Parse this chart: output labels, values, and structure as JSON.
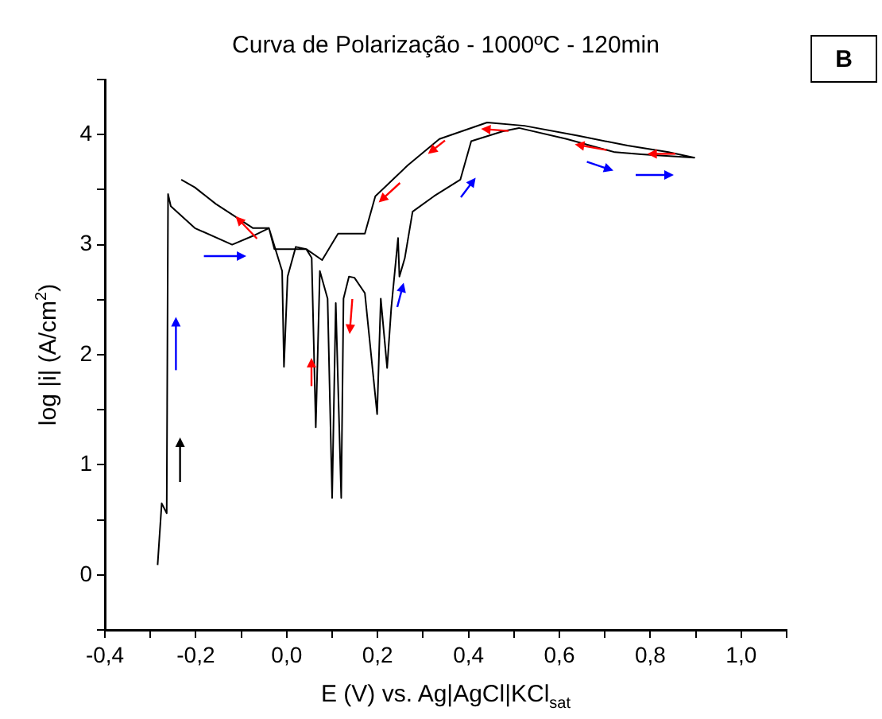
{
  "chart_data": {
    "type": "line",
    "title": "Curva de Polarização - 1000ºC - 120min",
    "xlabel": "E (V) vs. Ag|AgCl|KCl$_{sat}$",
    "ylabel": "log |i| (A/cm$^{2}$)",
    "annotations": [
      "B"
    ],
    "series": [
      {
        "color": "#000000",
        "x": [
          -0.284,
          -0.275,
          -0.264,
          -0.261,
          -0.255,
          -0.202,
          -0.12,
          -0.074,
          -0.039,
          -0.01,
          -0.006,
          0.002,
          0.02,
          0.043,
          0.055,
          0.064,
          0.073,
          0.09,
          0.1,
          0.108,
          0.12,
          0.125,
          0.137,
          0.149,
          0.172,
          0.199,
          0.207,
          0.221,
          0.23,
          0.245,
          0.248,
          0.26,
          0.277,
          0.324,
          0.382,
          0.406,
          0.476,
          0.511,
          0.616,
          0.722,
          0.78,
          0.897,
          0.84,
          0.75,
          0.64,
          0.523,
          0.441,
          0.336,
          0.266,
          0.195,
          0.172,
          0.149,
          0.113,
          0.078,
          0.043,
          -0.027,
          -0.039,
          -0.074,
          -0.156,
          -0.202,
          -0.232
        ],
        "values": [
          0.09,
          0.65,
          0.56,
          3.46,
          3.35,
          3.15,
          3.0,
          3.08,
          3.15,
          2.76,
          1.89,
          2.71,
          2.98,
          2.96,
          2.88,
          1.34,
          2.76,
          2.51,
          0.7,
          2.47,
          0.7,
          2.51,
          2.71,
          2.7,
          2.56,
          1.46,
          2.51,
          1.88,
          2.42,
          3.06,
          2.71,
          2.88,
          3.3,
          3.44,
          3.59,
          3.94,
          4.03,
          4.06,
          3.96,
          3.84,
          3.82,
          3.79,
          3.84,
          3.9,
          3.99,
          4.08,
          4.11,
          3.96,
          3.72,
          3.44,
          3.1,
          3.1,
          3.1,
          2.86,
          2.96,
          2.96,
          3.15,
          3.15,
          3.37,
          3.52,
          3.59
        ]
      }
    ],
    "xlim": [
      -0.4,
      1.1
    ],
    "ylim": [
      -0.5,
      4.5
    ],
    "xticks": [
      {
        "value": -0.4,
        "label": "-0,4"
      },
      {
        "value": -0.3,
        "label": null
      },
      {
        "value": -0.2,
        "label": "-0,2"
      },
      {
        "value": -0.1,
        "label": null
      },
      {
        "value": 0,
        "label": "0,0"
      },
      {
        "value": 0.1,
        "label": null
      },
      {
        "value": 0.2,
        "label": "0,2"
      },
      {
        "value": 0.3,
        "label": null
      },
      {
        "value": 0.4,
        "label": "0,4"
      },
      {
        "value": 0.5,
        "label": null
      },
      {
        "value": 0.6,
        "label": "0,6"
      },
      {
        "value": 0.7,
        "label": null
      },
      {
        "value": 0.8,
        "label": "0,8"
      },
      {
        "value": 0.9,
        "label": null
      },
      {
        "value": 1.0,
        "label": "1,0"
      },
      {
        "value": 1.1,
        "label": null
      }
    ],
    "yticks": [
      {
        "value": -0.5,
        "label": null
      },
      0,
      {
        "value": 0.5,
        "label": null
      },
      1,
      {
        "value": 1.5,
        "label": null
      },
      2,
      {
        "value": 2.5,
        "label": null
      },
      3,
      {
        "value": 3.5,
        "label": null
      },
      4,
      {
        "value": 4.5,
        "label": null
      }
    ],
    "grid": false,
    "legend": false,
    "marker": "none",
    "line_style": "solid"
  }
}
